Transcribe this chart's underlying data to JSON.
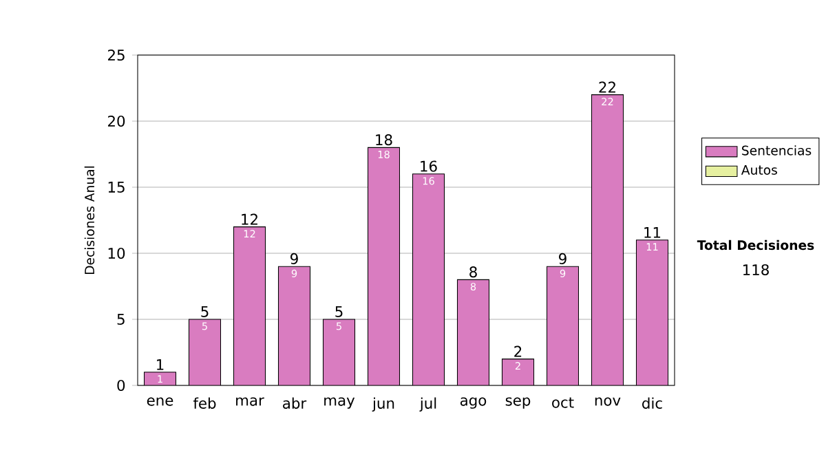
{
  "chart_data": {
    "type": "bar",
    "ylabel": "Decisiones Anual",
    "categories": [
      "ene",
      "feb",
      "mar",
      "abr",
      "may",
      "jun",
      "jul",
      "ago",
      "sep",
      "oct",
      "nov",
      "dic"
    ],
    "series": [
      {
        "name": "Sentencias",
        "color": "#d97cc0",
        "values": [
          1,
          5,
          12,
          9,
          5,
          18,
          16,
          8,
          2,
          9,
          22,
          11
        ],
        "value_labels": [
          "1",
          "5",
          "12",
          "9",
          "5",
          "18",
          "16",
          "8",
          "2",
          "9",
          "22",
          "11"
        ]
      },
      {
        "name": "Autos",
        "color": "#e6f0a0",
        "values": [
          0,
          0,
          0,
          0,
          0,
          0,
          0,
          0,
          0,
          0,
          0,
          0
        ]
      }
    ],
    "stacked": true,
    "totals": [
      "1",
      "5",
      "12",
      "9",
      "5",
      "18",
      "16",
      "8",
      "2",
      "9",
      "22",
      "11"
    ],
    "ylim": [
      0,
      25
    ],
    "yticks": [
      0,
      5,
      10,
      15,
      20,
      25
    ],
    "grid": "y",
    "legend": "right",
    "annotations": [
      "Total Decisiones",
      "118"
    ]
  }
}
